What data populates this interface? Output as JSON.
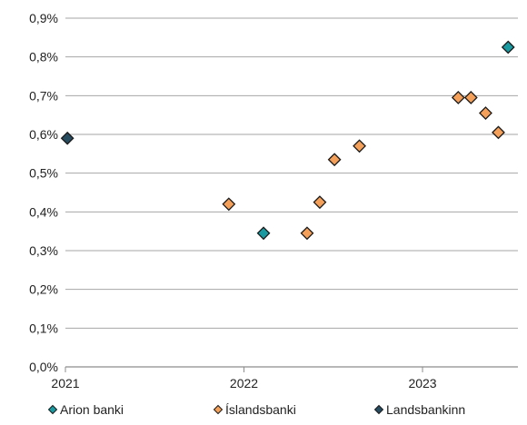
{
  "chart_data": {
    "type": "scatter",
    "title": "",
    "xlabel": "",
    "ylabel": "",
    "x_axis": {
      "type": "date",
      "range": [
        "2021-01-01",
        "2023-07-15"
      ],
      "ticks": [
        {
          "value": "2021-01-01",
          "label": "2021"
        },
        {
          "value": "2022-01-01",
          "label": "2022"
        },
        {
          "value": "2023-01-01",
          "label": "2023"
        }
      ]
    },
    "y_axis": {
      "range": [
        0,
        0.9
      ],
      "ticks": [
        {
          "value": 0.0,
          "label": "0,0%"
        },
        {
          "value": 0.1,
          "label": "0,1%"
        },
        {
          "value": 0.2,
          "label": "0,2%"
        },
        {
          "value": 0.3,
          "label": "0,3%"
        },
        {
          "value": 0.4,
          "label": "0,4%"
        },
        {
          "value": 0.5,
          "label": "0,5%"
        },
        {
          "value": 0.6,
          "label": "0,6%"
        },
        {
          "value": 0.7,
          "label": "0,7%"
        },
        {
          "value": 0.8,
          "label": "0,8%"
        },
        {
          "value": 0.9,
          "label": "0,9%"
        }
      ]
    },
    "grid": "horizontal",
    "marker": "diamond",
    "legend_position": "bottom",
    "series": [
      {
        "name": "Arion banki",
        "color": "#1a9aa0",
        "points": [
          {
            "x": "2022-02-10",
            "y": 0.345
          },
          {
            "x": "2023-06-25",
            "y": 0.825
          }
        ]
      },
      {
        "name": "Íslandsbanki",
        "color": "#f5a05a",
        "points": [
          {
            "x": "2021-12-01",
            "y": 0.42
          },
          {
            "x": "2022-05-10",
            "y": 0.345
          },
          {
            "x": "2022-06-05",
            "y": 0.425
          },
          {
            "x": "2022-07-05",
            "y": 0.535
          },
          {
            "x": "2022-08-25",
            "y": 0.57
          },
          {
            "x": "2023-03-15",
            "y": 0.695
          },
          {
            "x": "2023-04-10",
            "y": 0.695
          },
          {
            "x": "2023-05-10",
            "y": 0.655
          },
          {
            "x": "2023-06-05",
            "y": 0.605
          }
        ]
      },
      {
        "name": "Landsbankinn",
        "color": "#274b5f",
        "points": [
          {
            "x": "2021-01-05",
            "y": 0.59
          }
        ]
      }
    ]
  }
}
